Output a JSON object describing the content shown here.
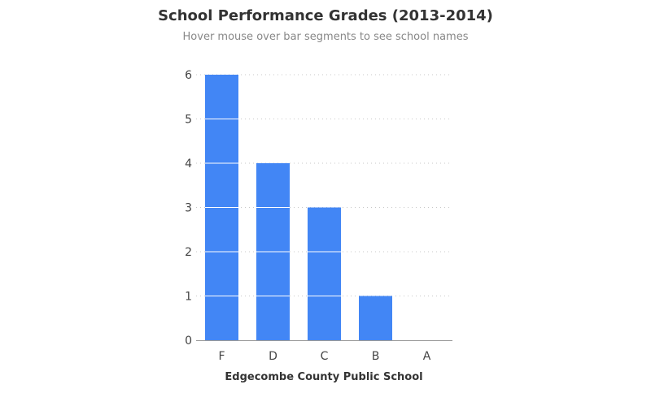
{
  "chart_data": {
    "type": "bar",
    "title": "School Performance Grades (2013-2014)",
    "subtitle": "Hover mouse over bar segments to see school names",
    "categories": [
      "F",
      "D",
      "C",
      "B",
      "A"
    ],
    "values": [
      6,
      4,
      3,
      1,
      0
    ],
    "xlabel": "Edgecombe County Public School",
    "ylabel": "",
    "ylim": [
      0,
      6
    ],
    "yticks": [
      0,
      1,
      2,
      3,
      4,
      5,
      6
    ],
    "grid": true,
    "bar_color": "#4286f5",
    "segmented": true
  }
}
